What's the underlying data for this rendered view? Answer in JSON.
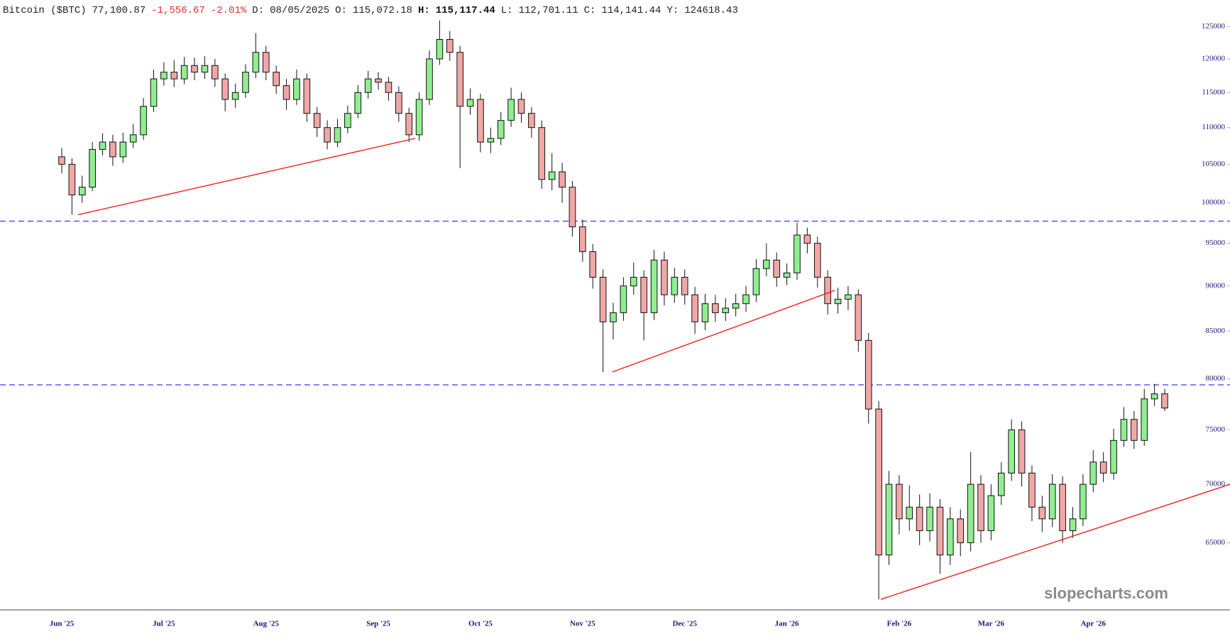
{
  "chart_data": {
    "type": "candlestick",
    "header": [
      {
        "text": "Bitcoin ($BTC)",
        "color": "#222222"
      },
      {
        "text": "77,100.87",
        "color": "#222222"
      },
      {
        "text": "-1,556.67",
        "color": "#e03030"
      },
      {
        "text": "-2.01%",
        "color": "#e03030"
      },
      {
        "text": "D:",
        "color": "#222222"
      },
      {
        "text": "08/05/2025",
        "color": "#222222"
      },
      {
        "text": "O:",
        "color": "#222222"
      },
      {
        "text": "115,072.18",
        "color": "#222222"
      },
      {
        "text": "H:",
        "color": "#111111",
        "bold": true
      },
      {
        "text": "115,117.44",
        "color": "#111111",
        "bold": true
      },
      {
        "text": "L:",
        "color": "#222222"
      },
      {
        "text": "112,701.11",
        "color": "#222222"
      },
      {
        "text": "C:",
        "color": "#222222"
      },
      {
        "text": "114,141.44",
        "color": "#222222"
      },
      {
        "text": "Y:",
        "color": "#222222"
      },
      {
        "text": "124618.43",
        "color": "#222222"
      }
    ],
    "watermark": "slopecharts.com",
    "categories": [
      "Jun '25",
      null,
      null,
      null,
      null,
      null,
      null,
      null,
      null,
      null,
      "Jul '25",
      null,
      null,
      null,
      null,
      null,
      null,
      null,
      null,
      null,
      "Aug '25",
      null,
      null,
      null,
      null,
      null,
      null,
      null,
      null,
      null,
      null,
      "Sep '25",
      null,
      null,
      null,
      null,
      null,
      null,
      null,
      null,
      null,
      "Oct '25",
      null,
      null,
      null,
      null,
      null,
      null,
      null,
      null,
      null,
      "Nov '25",
      null,
      null,
      null,
      null,
      null,
      null,
      null,
      null,
      null,
      "Dec '25",
      null,
      null,
      null,
      null,
      null,
      null,
      null,
      null,
      null,
      "Jan '26",
      null,
      null,
      null,
      null,
      null,
      null,
      null,
      null,
      null,
      null,
      "Feb '26",
      null,
      null,
      null,
      null,
      null,
      null,
      null,
      null,
      "Mar '26",
      null,
      null,
      null,
      null,
      null,
      null,
      null,
      null,
      null,
      "Apr '26",
      null,
      null,
      null,
      null,
      null,
      null,
      null
    ],
    "open": [
      106000,
      105000,
      101000,
      102000,
      107000,
      108000,
      106000,
      108000,
      109000,
      113000,
      117000,
      118000,
      117000,
      119000,
      118000,
      119000,
      117000,
      114000,
      115000,
      118000,
      121000,
      118000,
      116000,
      114000,
      117000,
      112000,
      110000,
      108000,
      110000,
      112000,
      115000,
      117000,
      116500,
      115000,
      112000,
      109000,
      114000,
      120000,
      123000,
      121000,
      113000,
      114000,
      108000,
      108500,
      111000,
      114000,
      112000,
      110000,
      103000,
      104000,
      102000,
      97000,
      94000,
      91000,
      86000,
      87000,
      90000,
      91000,
      87000,
      93000,
      89000,
      91000,
      89000,
      86000,
      88000,
      87000,
      87500,
      88000,
      89000,
      92000,
      93000,
      91000,
      91500,
      96000,
      95000,
      91000,
      88000,
      88500,
      89000,
      84000,
      77000,
      64000,
      70000,
      67000,
      68000,
      66000,
      68000,
      64000,
      67000,
      65000,
      70000,
      66000,
      69000,
      71000,
      75000,
      71000,
      68000,
      67000,
      70000,
      66000,
      67000,
      70000,
      72000,
      71000,
      74000,
      76000,
      74000,
      78000,
      78500
    ],
    "high": [
      107200,
      105800,
      103500,
      108000,
      109200,
      109000,
      109300,
      110500,
      114200,
      118400,
      119500,
      119800,
      120300,
      120200,
      120400,
      120000,
      117800,
      116300,
      119200,
      124000,
      122000,
      119000,
      117000,
      118400,
      117800,
      112900,
      111000,
      111200,
      113100,
      116100,
      118200,
      118000,
      117300,
      115900,
      112800,
      115000,
      121300,
      126000,
      124300,
      122000,
      115600,
      114800,
      110000,
      112200,
      115700,
      115000,
      112900,
      111000,
      106500,
      105200,
      102800,
      97900,
      94900,
      91900,
      88100,
      91000,
      92700,
      91800,
      94200,
      94000,
      92100,
      91900,
      89900,
      89100,
      89000,
      88600,
      89100,
      90000,
      93100,
      95000,
      93900,
      92600,
      97500,
      96900,
      95800,
      91800,
      89800,
      90000,
      89600,
      84800,
      77800,
      71200,
      70800,
      69900,
      69100,
      69200,
      68700,
      68000,
      67800,
      72900,
      70800,
      70000,
      72000,
      76000,
      75800,
      71700,
      69000,
      70900,
      70700,
      68000,
      70900,
      73100,
      72900,
      75100,
      77200,
      76800,
      79000,
      79500,
      79000
    ],
    "low": [
      103800,
      98500,
      100000,
      101500,
      106200,
      104800,
      105200,
      107200,
      108300,
      112200,
      116000,
      115800,
      116200,
      116800,
      117000,
      115800,
      112300,
      112800,
      114200,
      117100,
      116800,
      114800,
      112500,
      113200,
      110800,
      108700,
      107000,
      107300,
      109200,
      111300,
      114100,
      115400,
      113800,
      110800,
      108000,
      108200,
      113200,
      119100,
      119700,
      104500,
      111800,
      106600,
      106500,
      107600,
      110100,
      110700,
      108600,
      101800,
      101600,
      100000,
      95800,
      92800,
      89700,
      80700,
      84100,
      86100,
      89000,
      84000,
      86200,
      87800,
      88100,
      87900,
      84700,
      85100,
      86000,
      86100,
      86600,
      87100,
      88200,
      91100,
      89900,
      90100,
      90700,
      93800,
      89800,
      86800,
      86900,
      87300,
      82800,
      75600,
      60500,
      63200,
      65700,
      66000,
      64800,
      65100,
      62500,
      63200,
      63900,
      64300,
      65000,
      65200,
      68200,
      70300,
      69800,
      66800,
      65900,
      66300,
      65000,
      65400,
      66400,
      69300,
      70200,
      70400,
      73400,
      73200,
      73500,
      77300,
      76800
    ],
    "close": [
      105000,
      101000,
      102000,
      107000,
      108000,
      106000,
      108000,
      109000,
      113000,
      117000,
      118000,
      117000,
      119000,
      118000,
      119000,
      117000,
      114000,
      115000,
      118000,
      121000,
      118000,
      116000,
      114000,
      117000,
      112000,
      110000,
      108000,
      110000,
      112000,
      115000,
      117000,
      116500,
      115000,
      112000,
      109000,
      114000,
      120000,
      123000,
      121000,
      113000,
      114000,
      108000,
      108500,
      111000,
      114000,
      112000,
      110000,
      103000,
      104000,
      102000,
      97000,
      94000,
      91000,
      86000,
      87000,
      90000,
      91000,
      87000,
      93000,
      89000,
      91000,
      89000,
      86000,
      88000,
      87000,
      87500,
      88000,
      89000,
      92000,
      93000,
      91000,
      91500,
      96000,
      95000,
      91000,
      88000,
      88500,
      89000,
      84000,
      77000,
      64000,
      70000,
      67000,
      68000,
      66000,
      68000,
      64000,
      67000,
      65000,
      70000,
      66000,
      69000,
      71000,
      75000,
      71000,
      68000,
      67000,
      70000,
      66000,
      67000,
      70000,
      72000,
      71000,
      74000,
      76000,
      74000,
      78000,
      78500,
      77100
    ],
    "up_color": "#90ee90",
    "down_color": "#f2a7a7",
    "ylim": [
      59700,
      129300
    ],
    "yticks": [
      65000,
      70000,
      75000,
      80000,
      85000,
      90000,
      95000,
      100000,
      105000,
      110000,
      115000,
      120000,
      125000
    ],
    "log_scale": true,
    "hlines": {
      "values": [
        97700,
        79400
      ],
      "color": "#3b3bf0"
    },
    "trendlines": {
      "color": "#ee2222",
      "lines": [
        {
          "x": [
            1.6,
            34.6
          ],
          "y": [
            98500,
            108500
          ]
        },
        {
          "x": [
            53.9,
            75.7
          ],
          "y": [
            80700,
            89500
          ]
        },
        {
          "x": [
            80.2,
            114.4
          ],
          "y": [
            60500,
            70000
          ]
        }
      ]
    }
  }
}
